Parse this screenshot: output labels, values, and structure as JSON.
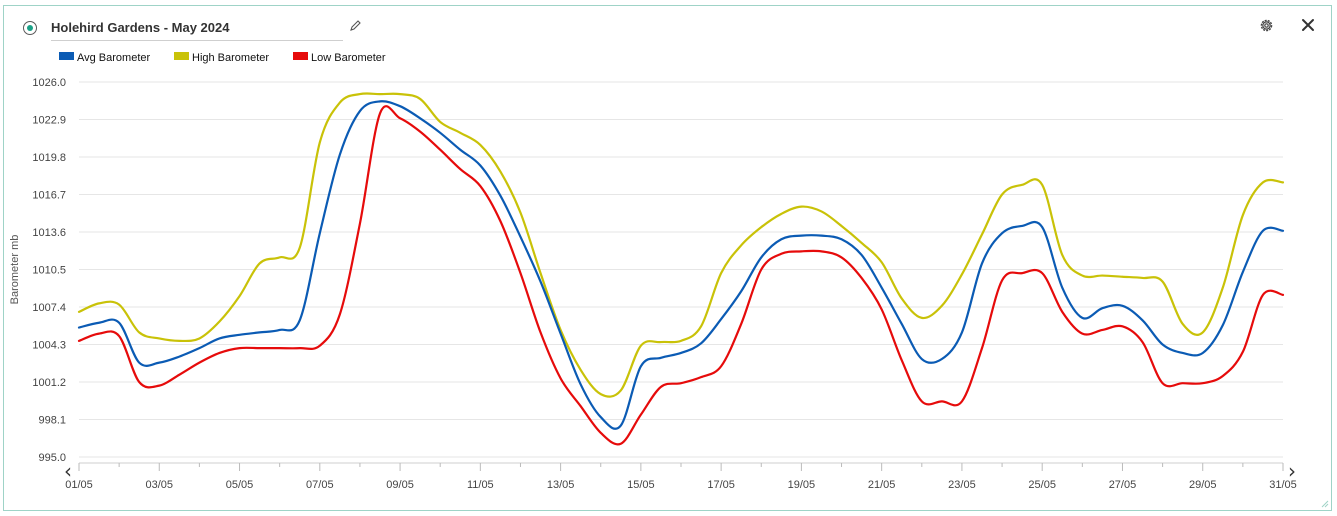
{
  "header": {
    "title": "Holehird Gardens - May 2024"
  },
  "icons": {
    "radio": "radio-selected-icon",
    "edit": "pencil-icon",
    "settings": "gear-icon",
    "close": "close-icon",
    "prev": "chevron-left-icon",
    "next": "chevron-right-icon"
  },
  "nav": {
    "prev_label": "‹",
    "next_label": "›"
  },
  "chart_data": {
    "type": "line",
    "title": "",
    "ylabel": "Barometer mb",
    "xlabel": "",
    "ylim": [
      995.0,
      1026.0
    ],
    "yticks": [
      "1026.0",
      "1022.9",
      "1019.8",
      "1016.7",
      "1013.6",
      "1010.5",
      "1007.4",
      "1004.3",
      "1001.2",
      "998.1",
      "995.0"
    ],
    "xlim": [
      1,
      31
    ],
    "xticks": [
      "01/05",
      "03/05",
      "05/05",
      "07/05",
      "09/05",
      "11/05",
      "13/05",
      "15/05",
      "17/05",
      "19/05",
      "21/05",
      "23/05",
      "25/05",
      "27/05",
      "29/05",
      "31/05"
    ],
    "grid": true,
    "legend_position": "top-left",
    "x": [
      1,
      1.5,
      2,
      2.5,
      3,
      3.5,
      4,
      4.5,
      5,
      5.5,
      6,
      6.5,
      7,
      7.5,
      8,
      8.5,
      9,
      9.5,
      10,
      10.5,
      11,
      11.5,
      12,
      12.5,
      13,
      13.5,
      14,
      14.5,
      15,
      15.5,
      16,
      16.5,
      17,
      17.5,
      18,
      18.5,
      19,
      19.5,
      20,
      20.5,
      21,
      21.5,
      22,
      22.5,
      23,
      23.5,
      24,
      24.5,
      25,
      25.5,
      26,
      26.5,
      27,
      27.5,
      28,
      28.5,
      29,
      29.5,
      30,
      30.5,
      31
    ],
    "series": [
      {
        "name": "Avg Barometer",
        "color": "#0b5bb4",
        "values": [
          1005.7,
          1006.1,
          1006.1,
          1002.8,
          1002.8,
          1003.3,
          1004.0,
          1004.8,
          1005.1,
          1005.3,
          1005.5,
          1006.3,
          1013.5,
          1020.0,
          1023.6,
          1024.4,
          1024.0,
          1023.0,
          1021.8,
          1020.4,
          1019.1,
          1016.6,
          1013.2,
          1009.5,
          1005.2,
          1001.0,
          998.3,
          997.6,
          1002.5,
          1003.2,
          1003.6,
          1004.4,
          1006.4,
          1008.7,
          1011.5,
          1013.0,
          1013.3,
          1013.3,
          1013.0,
          1011.7,
          1009.0,
          1006.0,
          1003.1,
          1003.1,
          1005.3,
          1011.0,
          1013.5,
          1014.1,
          1014.0,
          1009.0,
          1006.5,
          1007.3,
          1007.5,
          1006.3,
          1004.3,
          1003.6,
          1003.6,
          1005.9,
          1010.3,
          1013.7,
          1013.7
        ]
      },
      {
        "name": "High Barometer",
        "color": "#c9c208",
        "values": [
          1007.0,
          1007.7,
          1007.6,
          1005.3,
          1004.8,
          1004.6,
          1004.8,
          1006.2,
          1008.3,
          1011.0,
          1011.5,
          1012.3,
          1021.0,
          1024.3,
          1025.0,
          1025.0,
          1025.0,
          1024.6,
          1022.7,
          1021.8,
          1020.8,
          1018.6,
          1015.2,
          1010.2,
          1005.5,
          1002.2,
          1000.2,
          1000.5,
          1004.2,
          1004.5,
          1004.6,
          1005.8,
          1010.2,
          1012.5,
          1014.0,
          1015.1,
          1015.7,
          1015.3,
          1014.1,
          1012.7,
          1011.1,
          1008.1,
          1006.5,
          1007.5,
          1010.1,
          1013.4,
          1016.7,
          1017.5,
          1017.5,
          1011.7,
          1010.0,
          1010.0,
          1009.9,
          1009.8,
          1009.5,
          1006.0,
          1005.3,
          1009.0,
          1015.0,
          1017.7,
          1017.7
        ]
      },
      {
        "name": "Low Barometer",
        "color": "#e60b0b",
        "values": [
          1004.6,
          1005.2,
          1005.0,
          1001.2,
          1000.9,
          1001.8,
          1002.8,
          1003.6,
          1004.0,
          1004.0,
          1004.0,
          1004.0,
          1004.2,
          1006.8,
          1014.3,
          1023.4,
          1023.0,
          1021.9,
          1020.4,
          1018.8,
          1017.4,
          1014.5,
          1010.2,
          1005.3,
          1001.5,
          999.2,
          997.0,
          996.1,
          998.5,
          1000.8,
          1001.1,
          1001.6,
          1002.5,
          1006.0,
          1010.5,
          1011.8,
          1012.0,
          1012.0,
          1011.5,
          1009.8,
          1007.2,
          1003.0,
          999.6,
          999.6,
          999.6,
          1004.0,
          1009.6,
          1010.2,
          1010.2,
          1007.0,
          1005.2,
          1005.5,
          1005.8,
          1004.5,
          1001.1,
          1001.1,
          1001.1,
          1001.7,
          1003.7,
          1008.4,
          1008.4
        ]
      }
    ]
  }
}
